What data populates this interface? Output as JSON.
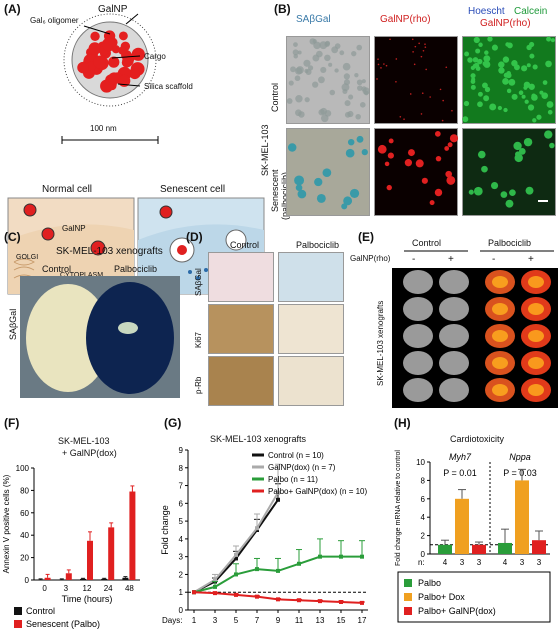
{
  "panels": {
    "A": {
      "letter": "(A)",
      "labels": {
        "galnp": "GalNP",
        "gal_oligomer": "Gal₆ oligomer",
        "cargo": "Cargo",
        "silica": "Silica scaffold",
        "size": "100 nm",
        "normal_cell": "Normal cell",
        "senescent_cell": "Senescent cell",
        "galnp_inner": "GalNP",
        "golgi": "GOLGI",
        "cytoplasm": "CYTOPLASM"
      },
      "colors": {
        "cargo": "#e41f1f",
        "normal_bg": "#f2dcc3",
        "senescent_bg": "#cfe3ef"
      }
    },
    "B": {
      "letter": "(B)",
      "col_sabgal": "SAβGal",
      "col_galnp": "GalNP(rho)",
      "col_hoescht": "Hoescht",
      "col_calcein": "Calcein",
      "col_galnp2": "GalNP(rho)",
      "cell_line": "SK-MEL-103",
      "row_control": "Control",
      "row_senescent": "Senescent",
      "row_senescent_sub": "(palbociclib)"
    },
    "C": {
      "letter": "(C)",
      "title": "SK-MEL-103 xenografts",
      "control": "Control",
      "palbo": "Palbociclib",
      "side": "SAβGal"
    },
    "D": {
      "letter": "(D)",
      "control": "Control",
      "palbo": "Palbociclib",
      "rows": [
        "SAβGal",
        "Ki67",
        "p-Rb"
      ]
    },
    "E": {
      "letter": "(E)",
      "control": "Control",
      "palbo": "Palbociclib",
      "galnp": "GalNP(rho)",
      "signs": [
        "-",
        "+",
        "-",
        "+"
      ],
      "side": "SK-MEL-103 xenografts"
    }
  },
  "chart_data": [
    {
      "panel": "(F)",
      "type": "bar",
      "title": "SK-MEL-103",
      "subtitle": "+ GalNP(dox)",
      "xlabel": "Time (hours)",
      "ylabel": "Annexin V positive cells (%)",
      "categories": [
        "0",
        "3",
        "12",
        "24",
        "48"
      ],
      "ylim": [
        0,
        100
      ],
      "yticks": [
        0,
        20,
        40,
        60,
        80,
        100
      ],
      "series": [
        {
          "name": "Control",
          "color": "#111111",
          "values": [
            0.5,
            0.5,
            1,
            1,
            2
          ],
          "errors": [
            0.5,
            0.5,
            0.5,
            0.5,
            1
          ]
        },
        {
          "name": "Senescent (Palbo)",
          "color": "#e02020",
          "values": [
            2,
            6,
            35,
            47,
            79
          ],
          "errors": [
            3,
            3,
            8,
            4,
            5
          ]
        }
      ],
      "legend": "bottom"
    },
    {
      "panel": "(G)",
      "type": "line",
      "title": "SK-MEL-103 xenografts",
      "xlabel": "Days:",
      "ylabel": "Fold change",
      "x": [
        1,
        3,
        5,
        7,
        9,
        11,
        13,
        15,
        17
      ],
      "ylim": [
        0,
        9
      ],
      "yticks": [
        0,
        1,
        2,
        3,
        4,
        5,
        6,
        7,
        8,
        9
      ],
      "series": [
        {
          "name": "Control (n = 10)",
          "color": "#111111",
          "x": [
            1,
            3,
            5,
            7,
            9
          ],
          "values": [
            1,
            1.6,
            2.9,
            4.5,
            6.2
          ],
          "errors": [
            0,
            0.2,
            0.4,
            0.6,
            0.9
          ]
        },
        {
          "name": "GalNP(dox) (n = 7)",
          "color": "#aaaaaa",
          "x": [
            1,
            3,
            5,
            7,
            9
          ],
          "values": [
            1,
            1.7,
            3.1,
            4.6,
            6.6
          ],
          "errors": [
            0,
            0.3,
            0.5,
            0.8,
            1.6
          ]
        },
        {
          "name": "Palbo (n = 11)",
          "color": "#2a9d3a",
          "x": [
            1,
            3,
            5,
            7,
            9,
            11,
            13,
            15,
            17
          ],
          "values": [
            1,
            1.3,
            2.0,
            2.3,
            2.2,
            2.6,
            3.0,
            3.0,
            3.0
          ],
          "errors": [
            0,
            0.3,
            0.6,
            0.6,
            0.7,
            0.8,
            1.0,
            0.9,
            0.9
          ]
        },
        {
          "name": "Palbo+ GalNP(dox) (n = 10)",
          "color": "#e02020",
          "x": [
            1,
            3,
            5,
            7,
            9,
            11,
            13,
            15,
            17
          ],
          "values": [
            1,
            0.95,
            0.85,
            0.75,
            0.6,
            0.55,
            0.5,
            0.45,
            0.4
          ],
          "errors": [
            0,
            0.05,
            0.05,
            0.05,
            0.05,
            0.05,
            0.05,
            0.05,
            0.05
          ]
        }
      ],
      "reference_line": 1
    },
    {
      "panel": "(H)",
      "type": "bar",
      "title": "Cardiotoxicity",
      "ylabel": "Fold change mRNA relative to control",
      "groups": [
        "Myh7",
        "Nppa"
      ],
      "ylim": [
        0,
        10
      ],
      "yticks": [
        0,
        2,
        4,
        6,
        8,
        10
      ],
      "series": [
        {
          "name": "Palbo",
          "color": "#2a9d3a",
          "values": [
            1.0,
            1.2
          ],
          "errors": [
            0.5,
            1.5
          ]
        },
        {
          "name": "Palbo+ Dox",
          "color": "#f0a020",
          "values": [
            6.0,
            8.0
          ],
          "errors": [
            1.0,
            1.2
          ]
        },
        {
          "name": "Palbo+ GalNP(dox)",
          "color": "#e02020",
          "values": [
            1.0,
            1.5
          ],
          "errors": [
            0.3,
            1.0
          ]
        }
      ],
      "n_label": "n:",
      "n_values": [
        "4",
        "3",
        "3",
        "4",
        "3",
        "3"
      ],
      "annotations": [
        "P = 0.01",
        "P = 0.03"
      ],
      "reference_line": 1,
      "legend": "bottom"
    }
  ]
}
